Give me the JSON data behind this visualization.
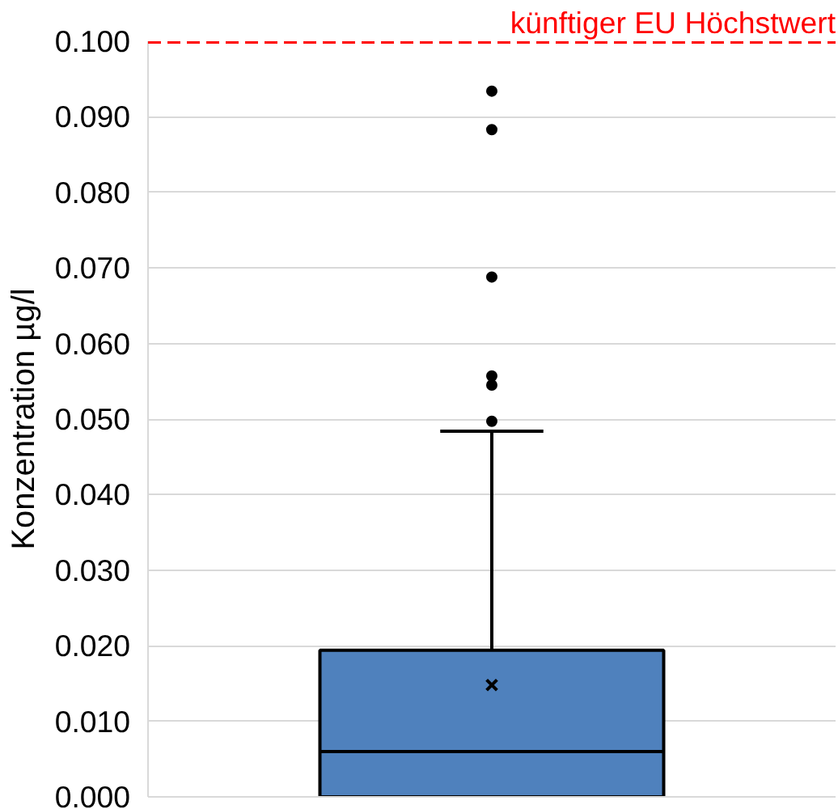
{
  "chart_data": {
    "type": "box",
    "ylabel": "Konzentration µg/l",
    "categories": [
      null
    ],
    "boxes": [
      {
        "low": 0,
        "q1": 0,
        "median": 0.006,
        "q3": 0.0194,
        "high": 0.0484,
        "mean": 0.0148,
        "outliers": [
          0.0497,
          0.0545,
          0.0557,
          0.0688,
          0.0883,
          0.0934
        ]
      }
    ],
    "color": "#4f81bd",
    "ylim": [
      0,
      0.1
    ],
    "yticks": [
      {
        "value": 0,
        "label": "0.000"
      },
      {
        "value": 0.01,
        "label": "0.010"
      },
      {
        "value": 0.02,
        "label": "0.020"
      },
      {
        "value": 0.03,
        "label": "0.030"
      },
      {
        "value": 0.04,
        "label": "0.040"
      },
      {
        "value": 0.05,
        "label": "0.050"
      },
      {
        "value": 0.06,
        "label": "0.060"
      },
      {
        "value": 0.07,
        "label": "0.070"
      },
      {
        "value": 0.08,
        "label": "0.080"
      },
      {
        "value": 0.09,
        "label": "0.090"
      },
      {
        "value": 0.1,
        "label": "0.100"
      }
    ],
    "ref_lines": [
      {
        "axis": "y",
        "value": 0.1,
        "label": "künftiger EU Höchstwert",
        "color": "#ff0000",
        "line_style": "dashed"
      }
    ],
    "grid": "y"
  }
}
